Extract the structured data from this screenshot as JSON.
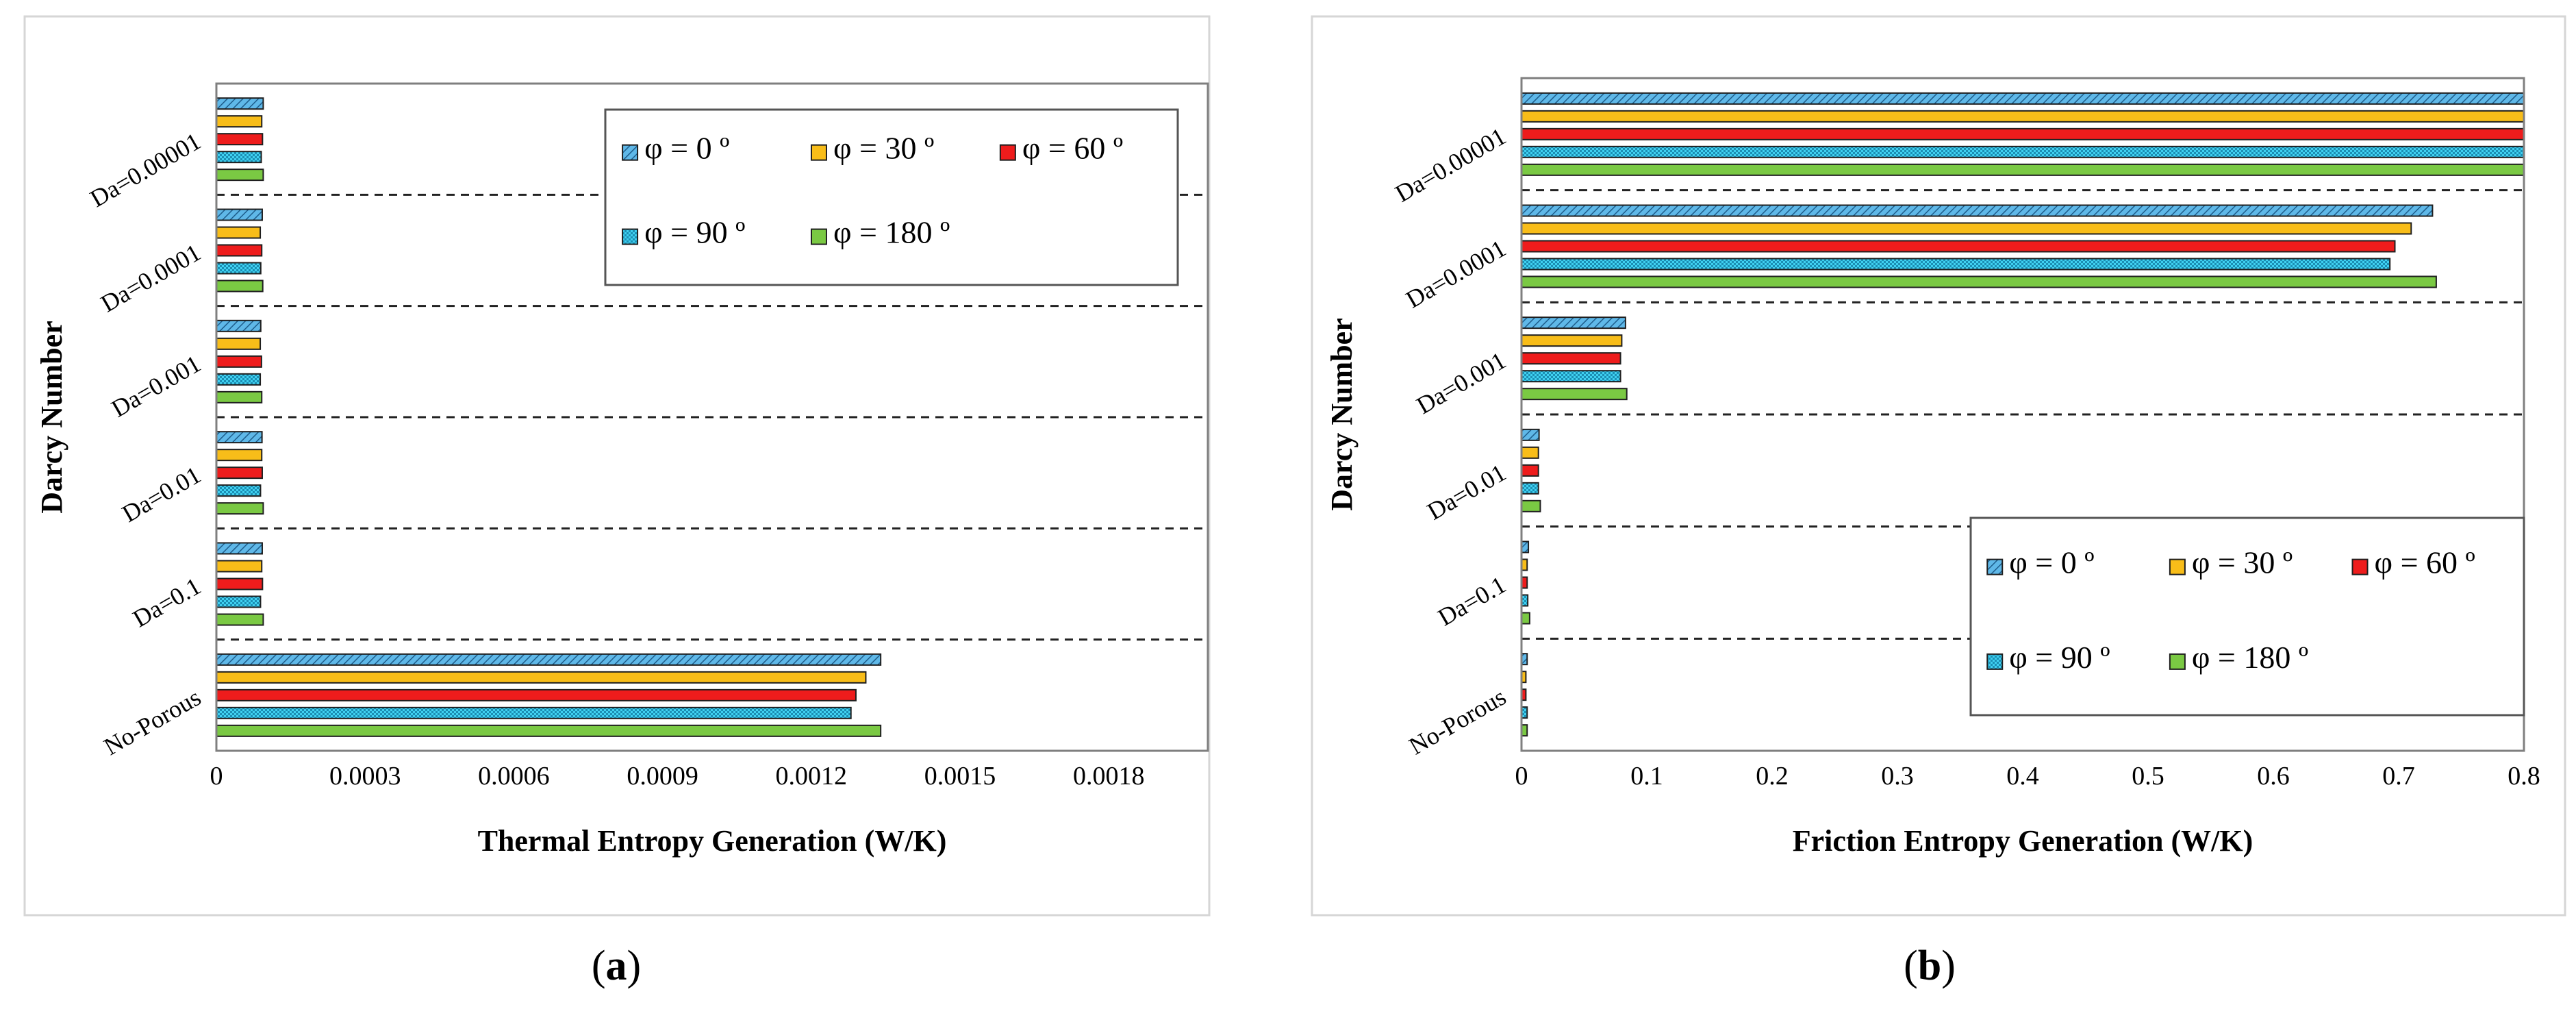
{
  "colors": {
    "phi0": "#5fb8e8",
    "phi30": "#f8bd19",
    "phi60": "#ee1c1c",
    "phi90": "#3fd0f0",
    "phi180": "#7ac943"
  },
  "legend": [
    "φ = 0 º",
    "φ = 30 º",
    "φ = 60 º",
    "φ = 90 º",
    "φ = 180 º"
  ],
  "chart_data": [
    {
      "type": "bar",
      "orientation": "horizontal",
      "panel_label_parts": [
        "(",
        "a",
        ")"
      ],
      "xlabel": "Thermal Entropy Generation (W/K)",
      "ylabel": "Darcy Number",
      "xlim": [
        0,
        0.002
      ],
      "xticks": [
        0,
        0.0003,
        0.0006,
        0.0009,
        0.0012,
        0.0015,
        0.0018
      ],
      "xtick_labels": [
        "0",
        "0.0003",
        "0.0006",
        "0.0009",
        "0.0012",
        "0.0015",
        "0.0018"
      ],
      "categories": [
        "Da=0.00001",
        "Da=0.0001",
        "Da=0.001",
        "Da=0.01",
        "Da=0.1",
        "No-Porous"
      ],
      "legend_position": "top-right",
      "series": [
        {
          "name": "φ = 0 º",
          "values": [
            9.45e-05,
            9.25e-05,
            8.95e-05,
            9.2e-05,
            9.25e-05,
            0.00134
          ]
        },
        {
          "name": "φ = 30 º",
          "values": [
            9.15e-05,
            8.85e-05,
            8.85e-05,
            9.15e-05,
            9.15e-05,
            0.00131
          ]
        },
        {
          "name": "φ = 60 º",
          "values": [
            9.3e-05,
            9.15e-05,
            9.1e-05,
            9.25e-05,
            9.3e-05,
            0.00129
          ]
        },
        {
          "name": "φ = 90 º",
          "values": [
            9.05e-05,
            8.95e-05,
            8.85e-05,
            8.9e-05,
            8.9e-05,
            0.00128
          ]
        },
        {
          "name": "φ = 180 º",
          "values": [
            9.45e-05,
            9.35e-05,
            9.15e-05,
            9.45e-05,
            9.45e-05,
            0.00134
          ]
        }
      ]
    },
    {
      "type": "bar",
      "orientation": "horizontal",
      "panel_label_parts": [
        "(",
        "b",
        ")"
      ],
      "xlabel": "Friction Entropy Generation (W/K)",
      "ylabel": "Darcy Number",
      "xlim": [
        0,
        0.8
      ],
      "xticks": [
        0,
        0.1,
        0.2,
        0.3,
        0.4,
        0.5,
        0.6,
        0.7,
        0.8
      ],
      "xtick_labels": [
        "0",
        "0.1",
        "0.2",
        "0.3",
        "0.4",
        "0.5",
        "0.6",
        "0.7",
        "0.8"
      ],
      "categories": [
        "Da=0.00001",
        "Da=0.0001",
        "Da=0.001",
        "Da=0.01",
        "Da=0.1",
        "No-Porous"
      ],
      "legend_position": "bottom-right",
      "series": [
        {
          "name": "φ = 0 º",
          "values": [
            0.8,
            0.727,
            0.083,
            0.014,
            0.0055,
            0.0045
          ]
        },
        {
          "name": "φ = 30 º",
          "values": [
            0.8,
            0.71,
            0.08,
            0.0135,
            0.0045,
            0.0035
          ]
        },
        {
          "name": "φ = 60 º",
          "values": [
            0.8,
            0.697,
            0.079,
            0.0135,
            0.0045,
            0.0035
          ]
        },
        {
          "name": "φ = 90 º",
          "values": [
            0.8,
            0.693,
            0.079,
            0.0135,
            0.005,
            0.0045
          ]
        },
        {
          "name": "φ = 180 º",
          "values": [
            0.8,
            0.73,
            0.084,
            0.015,
            0.0065,
            0.0045
          ]
        }
      ]
    }
  ]
}
